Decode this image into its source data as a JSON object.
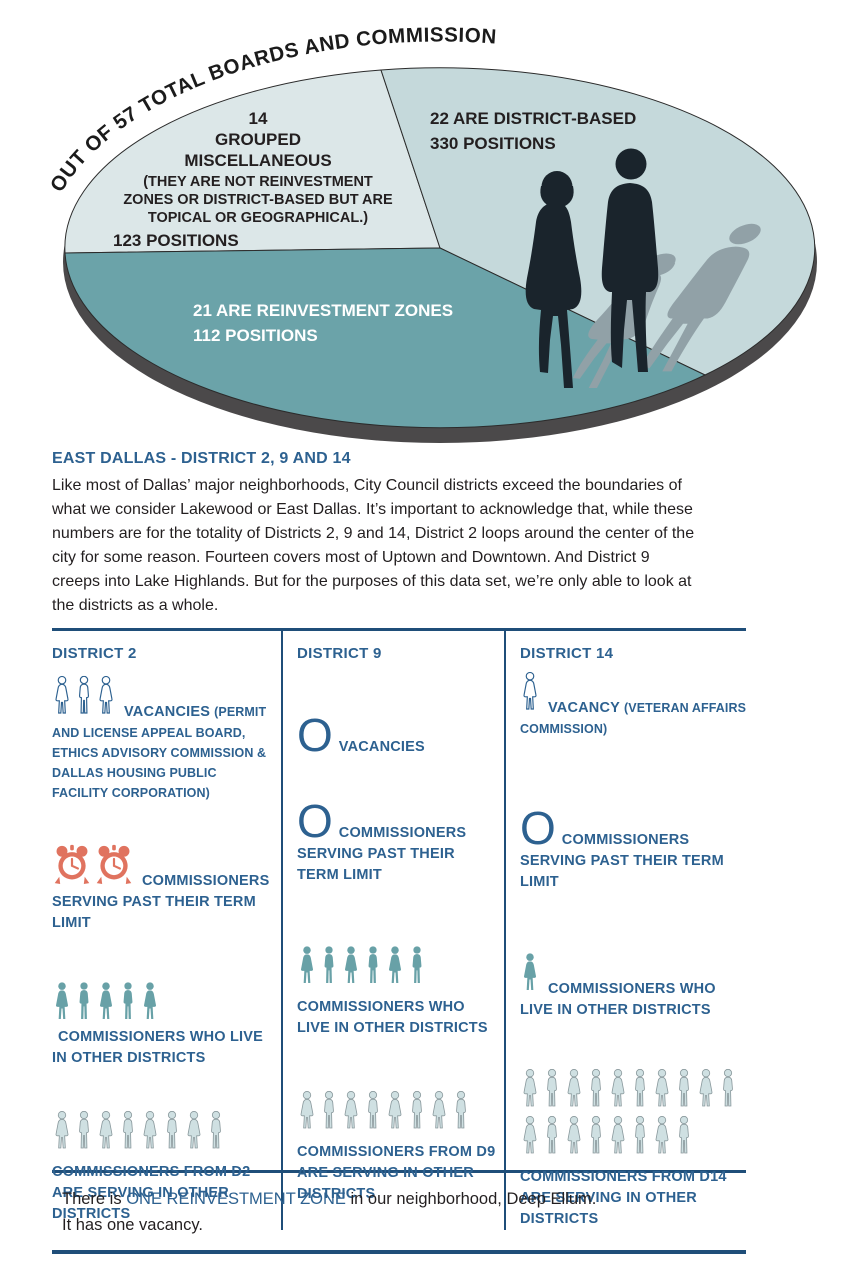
{
  "chart_data": {
    "type": "pie",
    "title": "OUT OF 57 TOTAL BOARDS AND COMMISSIONS:",
    "total_boards": 57,
    "legend_position": "inside",
    "slices": [
      {
        "label": "GROUPED MISCELLANEOUS",
        "boards": 14,
        "positions": 123,
        "note": "(THEY ARE NOT REINVESTMENT ZONES OR DISTRICT-BASED BUT ARE TOPICAL OR GEOGRAPHICAL.)",
        "color": "#dce7e8",
        "label_lines": [
          "14",
          "GROUPED",
          "MISCELLANEOUS",
          "(THEY ARE NOT REINVESTMENT",
          "ZONES OR DISTRICT-BASED BUT ARE",
          "TOPICAL OR GEOGRAPHICAL.)",
          "123 POSITIONS"
        ]
      },
      {
        "label": "DISTRICT-BASED",
        "boards": 22,
        "positions": 330,
        "color": "#c5d9db",
        "label_lines": [
          "22 ARE DISTRICT-BASED",
          "330 POSITIONS"
        ]
      },
      {
        "label": "REINVESTMENT ZONES",
        "boards": 21,
        "positions": 112,
        "color": "#6ba3a9",
        "label_lines": [
          "21 ARE REINVESTMENT ZONES",
          "112 POSITIONS"
        ]
      }
    ]
  },
  "intro": {
    "heading": "EAST DALLAS - DISTRICT 2, 9 AND 14",
    "body": "Like most of Dallas’ major neighborhoods, City Council districts exceed the boundaries of what we consider Lakewood or East Dallas. It’s important to acknowledge that, while these numbers are for the totality of Districts 2, 9 and 14, District 2 loops around the center of the city for some reason. Fourteen covers most of Uptown and Downtown. And District 9 creeps into Lake Highlands. But for the purposes of this data set, we’re only able to look at the districts as a whole."
  },
  "districts": [
    {
      "name": "DISTRICT 2",
      "stats": [
        {
          "icon": "person",
          "style": "outline",
          "count": 3,
          "value": 3,
          "label": "VACANCIES",
          "sub": "(PERMIT AND LICENSE APPEAL BOARD, ETHICS ADVISORY COMMISSION & DALLAS HOUSING PUBLIC FACILITY CORPORATION)"
        },
        {
          "icon": "clock",
          "style": "clockstyle",
          "count": 2,
          "value": 2,
          "label": "COMMISSIONERS SERVING PAST THEIR TERM LIMIT"
        },
        {
          "icon": "person",
          "style": "solid",
          "count": 5,
          "value": 5,
          "label": "COMMISSIONERS WHO LIVE IN OTHER DISTRICTS"
        },
        {
          "icon": "person",
          "style": "light",
          "count": 8,
          "value": 8,
          "label": "COMMISSIONERS FROM D2 ARE SERVING IN OTHER DISTRICTS",
          "label_below": true
        }
      ]
    },
    {
      "name": "DISTRICT 9",
      "stats": [
        {
          "display": "O",
          "value": 0,
          "label": "VACANCIES"
        },
        {
          "display": "O",
          "value": 0,
          "label": "COMMISSIONERS SERVING PAST THEIR TERM LIMIT"
        },
        {
          "icon": "person",
          "style": "solid",
          "count": 6,
          "value": 6,
          "label": "COMMISSIONERS WHO LIVE IN OTHER DISTRICTS",
          "label_below": true
        },
        {
          "icon": "person",
          "style": "light",
          "count": 8,
          "value": 8,
          "label": "COMMISSIONERS FROM D9 ARE SERVING IN OTHER DISTRICTS",
          "label_below": true
        }
      ]
    },
    {
      "name": "DISTRICT 14",
      "stats": [
        {
          "icon": "person",
          "style": "outline",
          "count": 1,
          "value": 1,
          "label": "VACANCY",
          "sub": "(VETERAN AFFAIRS COMMISSION)"
        },
        {
          "display": "O",
          "value": 0,
          "label": "COMMISSIONERS SERVING PAST THEIR TERM LIMIT"
        },
        {
          "icon": "person",
          "style": "solid",
          "count": 1,
          "value": 1,
          "label": "COMMISSIONERS WHO LIVE IN OTHER DISTRICTS"
        },
        {
          "icon": "person",
          "style": "light",
          "count": 18,
          "value": 18,
          "label": "COMMISSIONERS FROM D14 ARE SERVING IN OTHER DISTRICTS",
          "label_below": true
        }
      ]
    }
  ],
  "footer": {
    "prefix": "There is ",
    "highlight": "ONE REINVESTMENT ZONE",
    "suffix": " in our neighborhood, Deep Ellum.",
    "line2": "It has one vacancy."
  },
  "colors": {
    "accent_blue": "#2d6190",
    "rule_navy": "#1f4e79",
    "slice_light": "#dce7e8",
    "slice_mid": "#c5d9db",
    "slice_teal": "#6ba3a9",
    "pie_base_shadow": "#4b494a",
    "clock_red": "#e0735f",
    "icon_solid_teal": "#68a1a7",
    "icon_light_fill": "#cfe0e2",
    "icon_light_stroke": "#8a999d",
    "silhouette_dark": "#1a242c",
    "silhouette_shadow": "#91a1a7",
    "text_black": "#231f20",
    "white": "#ffffff"
  }
}
